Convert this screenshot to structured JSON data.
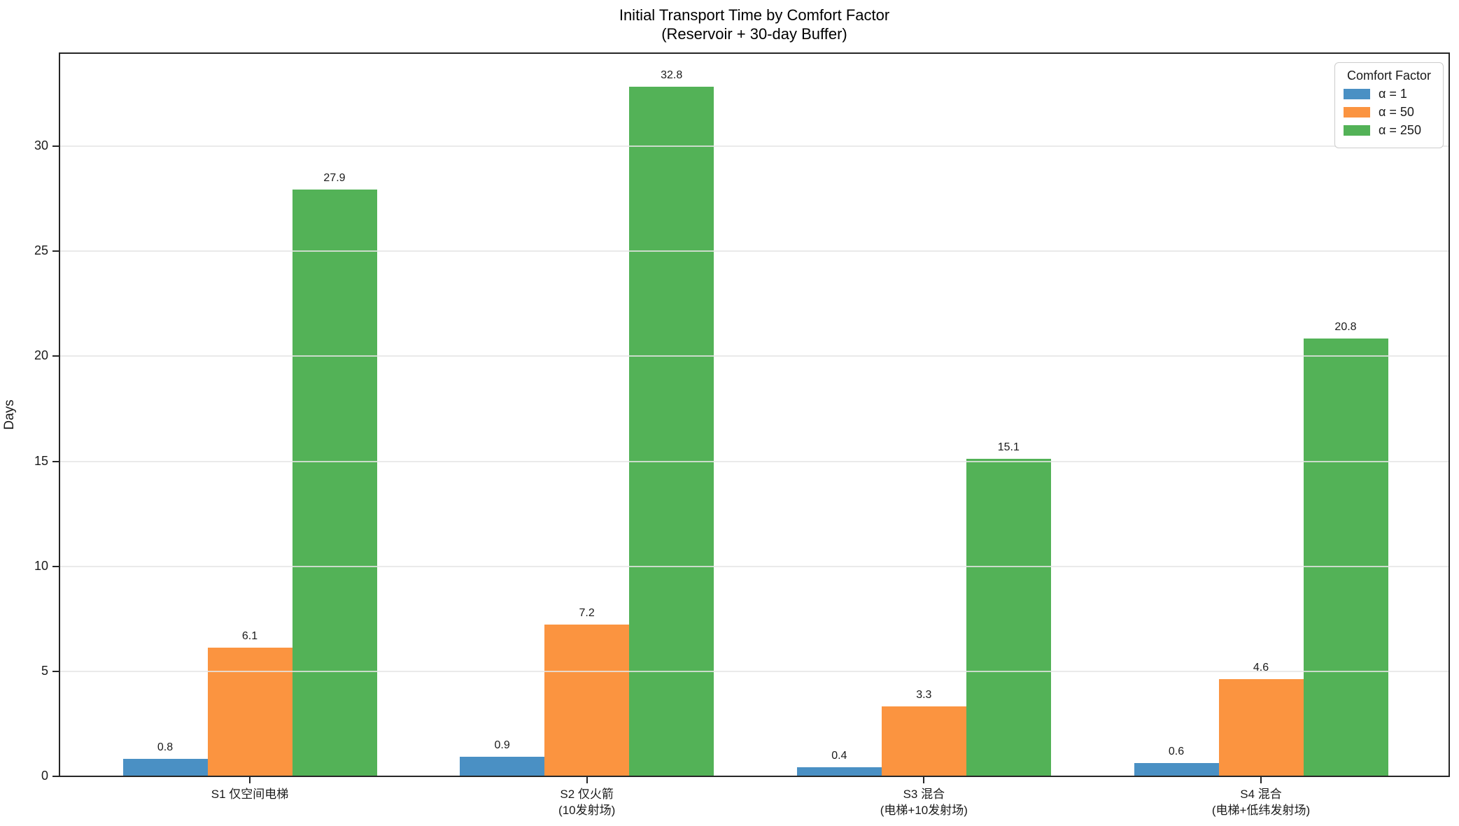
{
  "chart_data": {
    "type": "bar",
    "title_lines": [
      "Initial Transport Time by Comfort Factor",
      "(Reservoir + 30-day Buffer)"
    ],
    "ylabel": "Days",
    "categories": [
      "S1 仅空间电梯",
      "S2 仅火箭\n(10发射场)",
      "S3 混合\n(电梯+10发射场)",
      "S4 混合\n(电梯+低纬发射场)"
    ],
    "series": [
      {
        "name": "α = 1",
        "color": "#4a90c4",
        "values": [
          0.8,
          0.9,
          0.4,
          0.6
        ]
      },
      {
        "name": "α = 50",
        "color": "#fb9440",
        "values": [
          6.1,
          7.2,
          3.3,
          4.6
        ]
      },
      {
        "name": "α = 250",
        "color": "#53b257",
        "values": [
          27.9,
          32.8,
          15.1,
          20.8
        ]
      }
    ],
    "ylim": [
      0,
      34.5
    ],
    "yticks": [
      0,
      5,
      10,
      15,
      20,
      25,
      30
    ],
    "grid": true,
    "legend": {
      "title": "Comfort Factor",
      "position": "upper right"
    },
    "value_labels": true
  }
}
